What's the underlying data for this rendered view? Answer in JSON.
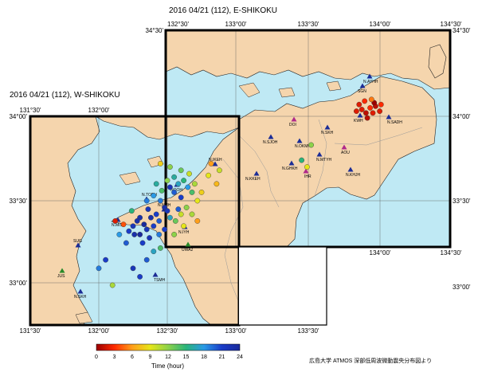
{
  "titles": {
    "east": "2016 04/21 (112), E-SHIKOKU",
    "west": "2016 04/21 (112), W-SHIKOKU"
  },
  "east_ticks": {
    "top": [
      "132°30'",
      "133°00'",
      "133°30'",
      "134°00'",
      "134°30'"
    ],
    "left": [
      "34°30'",
      "34°00'",
      "33°30'"
    ],
    "right": [
      "34°30'",
      "34°00'",
      "33°30'"
    ],
    "bottom": [
      "134°00'",
      "134°30'"
    ]
  },
  "west_ticks": {
    "top": [
      "131°30'",
      "132°00'"
    ],
    "left": [
      "34°00'",
      "33°30'",
      "33°00'"
    ],
    "bottom": [
      "131°30'",
      "132°00'",
      "132°30'",
      "133°00'",
      "133°30'"
    ],
    "right": [
      "33°00'"
    ]
  },
  "stations": [
    {
      "name": "N.AYHH",
      "color": "#1c2d96"
    },
    {
      "name": "SGN",
      "color": "#1c2d96"
    },
    {
      "name": "KWH",
      "color": "#1c2d96"
    },
    {
      "name": "N.SADH",
      "color": "#1c2d96"
    },
    {
      "name": "DOI",
      "color": "#b02a8a"
    },
    {
      "name": "N.SJOH",
      "color": "#1c2d96"
    },
    {
      "name": "N.OKMH",
      "color": "#1c2d96"
    },
    {
      "name": "N.SKH",
      "color": "#1c2d96"
    },
    {
      "name": "N.MTYH",
      "color": "#1c2d96"
    },
    {
      "name": "N.GHKH",
      "color": "#1c2d96"
    },
    {
      "name": "AOU",
      "color": "#b02a8a"
    },
    {
      "name": "IHR",
      "color": "#b02a8a"
    },
    {
      "name": "N.KHJH",
      "color": "#1c2d96"
    },
    {
      "name": "N.IKEH",
      "color": "#1c2d96"
    },
    {
      "name": "N.KKEH",
      "color": "#1c2d96"
    },
    {
      "name": "NOOH",
      "color": "#1c2d96"
    },
    {
      "name": "N.TOBH",
      "color": "#1c2d96"
    },
    {
      "name": "N.MISH",
      "color": "#1c2d96"
    },
    {
      "name": "N.NMH",
      "color": "#1c2d96"
    },
    {
      "name": "N.IYH",
      "color": "#1c2d96"
    },
    {
      "name": "UWA2",
      "color": "#2a8a2a"
    },
    {
      "name": "TSMH",
      "color": "#1c2d96"
    },
    {
      "name": "JUS",
      "color": "#2a8a2a"
    },
    {
      "name": "N.SKH",
      "color": "#1c2d96"
    },
    {
      "name": "SUG",
      "color": "#1c2d96"
    }
  ],
  "colorbar": {
    "title": "Time (hour)",
    "ticks": [
      "0",
      "3",
      "6",
      "9",
      "12",
      "15",
      "18",
      "21",
      "24"
    ],
    "stops": [
      "#9b0000",
      "#ff2a00",
      "#ff9f1a",
      "#e6e61a",
      "#8cd24a",
      "#2ab47a",
      "#2a9ae6",
      "#1a3cc8",
      "#1a2a9b"
    ]
  },
  "credit": "広島大学 ATMOS 深部低周波微動震央分布図より",
  "colors": {
    "land": "#f5d5ad",
    "sea": "#bfe9f4",
    "station_main": "#1c2d96",
    "station_alt": "#b02a8a",
    "station_green": "#2a8a2a"
  },
  "events": [
    {
      "x": 132.52,
      "y": 33.58,
      "t": 22
    },
    {
      "x": 132.55,
      "y": 33.55,
      "t": 20
    },
    {
      "x": 132.58,
      "y": 33.6,
      "t": 17
    },
    {
      "x": 132.6,
      "y": 33.52,
      "t": 21
    },
    {
      "x": 132.45,
      "y": 33.5,
      "t": 19
    },
    {
      "x": 132.48,
      "y": 33.46,
      "t": 23
    },
    {
      "x": 132.5,
      "y": 33.44,
      "t": 22
    },
    {
      "x": 132.42,
      "y": 33.42,
      "t": 21
    },
    {
      "x": 132.38,
      "y": 33.4,
      "t": 23
    },
    {
      "x": 132.36,
      "y": 33.45,
      "t": 22
    },
    {
      "x": 132.3,
      "y": 33.4,
      "t": 23
    },
    {
      "x": 132.33,
      "y": 33.36,
      "t": 24
    },
    {
      "x": 132.28,
      "y": 33.38,
      "t": 23
    },
    {
      "x": 132.25,
      "y": 33.35,
      "t": 22
    },
    {
      "x": 132.22,
      "y": 33.32,
      "t": 21
    },
    {
      "x": 132.26,
      "y": 33.3,
      "t": 23
    },
    {
      "x": 132.3,
      "y": 33.3,
      "t": 24
    },
    {
      "x": 132.35,
      "y": 33.33,
      "t": 22
    },
    {
      "x": 132.4,
      "y": 33.35,
      "t": 21
    },
    {
      "x": 132.44,
      "y": 33.38,
      "t": 20
    },
    {
      "x": 132.62,
      "y": 33.62,
      "t": 15
    },
    {
      "x": 132.65,
      "y": 33.58,
      "t": 18
    },
    {
      "x": 132.68,
      "y": 33.55,
      "t": 14
    },
    {
      "x": 132.7,
      "y": 33.6,
      "t": 11
    },
    {
      "x": 132.66,
      "y": 33.66,
      "t": 10
    },
    {
      "x": 132.6,
      "y": 33.68,
      "t": 13
    },
    {
      "x": 132.55,
      "y": 33.64,
      "t": 16
    },
    {
      "x": 132.5,
      "y": 33.62,
      "t": 12
    },
    {
      "x": 132.46,
      "y": 33.56,
      "t": 14
    },
    {
      "x": 132.42,
      "y": 33.6,
      "t": 16
    },
    {
      "x": 132.4,
      "y": 33.53,
      "t": 18
    },
    {
      "x": 132.35,
      "y": 33.5,
      "t": 19
    },
    {
      "x": 132.72,
      "y": 33.5,
      "t": 9
    },
    {
      "x": 132.75,
      "y": 33.55,
      "t": 8
    },
    {
      "x": 132.58,
      "y": 33.45,
      "t": 20
    },
    {
      "x": 132.52,
      "y": 33.4,
      "t": 17
    },
    {
      "x": 132.56,
      "y": 33.38,
      "t": 13
    },
    {
      "x": 132.6,
      "y": 33.42,
      "t": 10
    },
    {
      "x": 132.64,
      "y": 33.46,
      "t": 12
    },
    {
      "x": 132.48,
      "y": 33.33,
      "t": 21
    },
    {
      "x": 132.44,
      "y": 33.3,
      "t": 19
    },
    {
      "x": 132.37,
      "y": 33.28,
      "t": 22
    },
    {
      "x": 132.32,
      "y": 33.25,
      "t": 21
    },
    {
      "x": 132.2,
      "y": 33.25,
      "t": 20
    },
    {
      "x": 132.15,
      "y": 33.3,
      "t": 18
    },
    {
      "x": 132.18,
      "y": 33.36,
      "t": 4
    },
    {
      "x": 132.12,
      "y": 33.38,
      "t": 2
    },
    {
      "x": 132.24,
      "y": 33.44,
      "t": 15
    },
    {
      "x": 132.05,
      "y": 33.15,
      "t": 21
    },
    {
      "x": 132.0,
      "y": 33.1,
      "t": 19
    },
    {
      "x": 132.25,
      "y": 33.1,
      "t": 22
    },
    {
      "x": 132.3,
      "y": 33.05,
      "t": 21
    },
    {
      "x": 132.35,
      "y": 33.15,
      "t": 20
    },
    {
      "x": 132.4,
      "y": 33.2,
      "t": 17
    },
    {
      "x": 132.45,
      "y": 33.22,
      "t": 14
    },
    {
      "x": 132.1,
      "y": 33.0,
      "t": 11
    },
    {
      "x": 132.82,
      "y": 33.72,
      "t": 6
    },
    {
      "x": 132.8,
      "y": 33.65,
      "t": 9
    },
    {
      "x": 132.86,
      "y": 33.6,
      "t": 7
    },
    {
      "x": 132.88,
      "y": 33.68,
      "t": 10
    },
    {
      "x": 132.52,
      "y": 33.7,
      "t": 12
    },
    {
      "x": 132.45,
      "y": 33.72,
      "t": 8
    },
    {
      "x": 132.68,
      "y": 33.42,
      "t": 11
    },
    {
      "x": 132.72,
      "y": 33.38,
      "t": 6
    },
    {
      "x": 132.62,
      "y": 33.35,
      "t": 9
    },
    {
      "x": 132.55,
      "y": 33.3,
      "t": 12
    },
    {
      "x": 133.92,
      "y": 34.04,
      "t": 2
    },
    {
      "x": 133.95,
      "y": 34.02,
      "t": 1
    },
    {
      "x": 133.98,
      "y": 34.05,
      "t": 3
    },
    {
      "x": 134.0,
      "y": 34.02,
      "t": 2
    },
    {
      "x": 134.02,
      "y": 34.06,
      "t": 1
    },
    {
      "x": 133.9,
      "y": 34.07,
      "t": 2
    },
    {
      "x": 133.94,
      "y": 34.09,
      "t": 3
    },
    {
      "x": 134.05,
      "y": 34.03,
      "t": 2
    },
    {
      "x": 133.96,
      "y": 33.99,
      "t": 1
    },
    {
      "x": 134.01,
      "y": 34.08,
      "t": 0
    },
    {
      "x": 133.88,
      "y": 34.03,
      "t": 2
    },
    {
      "x": 134.06,
      "y": 34.07,
      "t": 3
    },
    {
      "x": 133.99,
      "y": 34.1,
      "t": 5
    },
    {
      "x": 133.55,
      "y": 33.83,
      "t": 12
    },
    {
      "x": 133.48,
      "y": 33.74,
      "t": 15
    },
    {
      "x": 133.52,
      "y": 33.7,
      "t": 9
    }
  ]
}
